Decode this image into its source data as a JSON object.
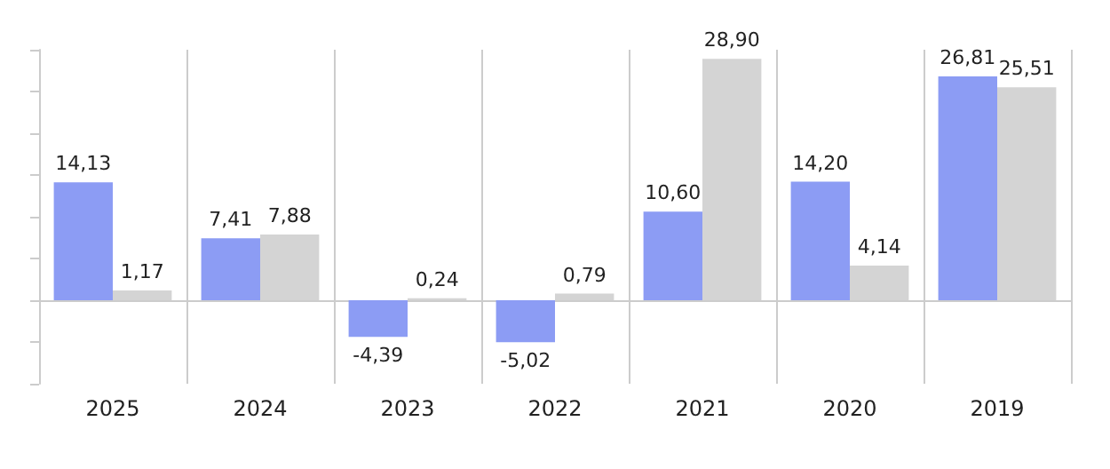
{
  "chart_data": {
    "type": "bar",
    "categories": [
      "2025",
      "2024",
      "2023",
      "2022",
      "2021",
      "2020",
      "2019"
    ],
    "series": [
      {
        "color": "#8c9cf4",
        "values": [
          14.13,
          7.41,
          -4.39,
          -5.02,
          10.6,
          14.2,
          26.81
        ],
        "value_labels": [
          "14,13",
          "7,41",
          "-4,39",
          "-5,02",
          "10,60",
          "14,20",
          "26,81"
        ]
      },
      {
        "color": "#d4d4d4",
        "values": [
          1.17,
          7.88,
          0.24,
          0.79,
          28.9,
          4.14,
          25.51
        ],
        "value_labels": [
          "1,17",
          "7,88",
          "0,24",
          "0,79",
          "28,90",
          "4,14",
          "25,51"
        ]
      }
    ],
    "grid": "x",
    "tick_labels": "x"
  }
}
